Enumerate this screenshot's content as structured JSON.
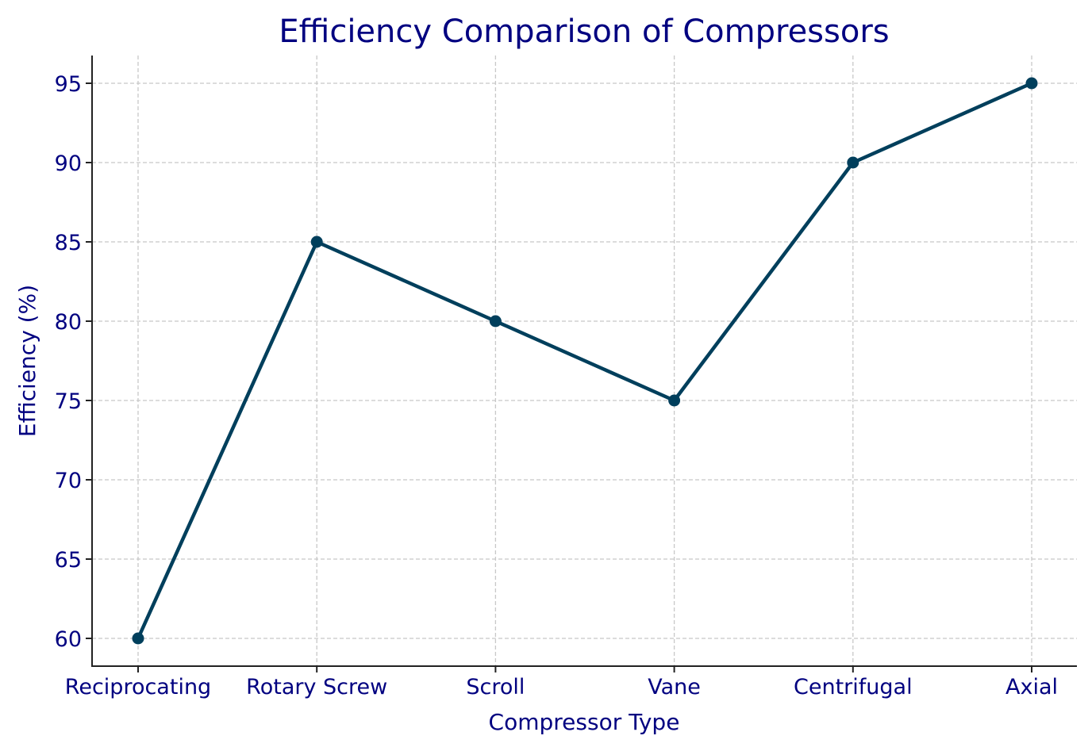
{
  "chart_data": {
    "type": "line",
    "title": "Efficiency Comparison of Compressors",
    "xlabel": "Compressor Type",
    "ylabel": "Efficiency (%)",
    "categories": [
      "Reciprocating",
      "Rotary Screw",
      "Scroll",
      "Vane",
      "Centrifugal",
      "Axial"
    ],
    "series": [
      {
        "values": [
          60,
          85,
          80,
          75,
          90,
          95
        ]
      }
    ],
    "yticks": [
      60,
      65,
      70,
      75,
      80,
      85,
      90,
      95
    ],
    "ylim": [
      58.25,
      96.75
    ],
    "grid": true,
    "line_color": "#003f5c",
    "text_color": "#000080"
  }
}
